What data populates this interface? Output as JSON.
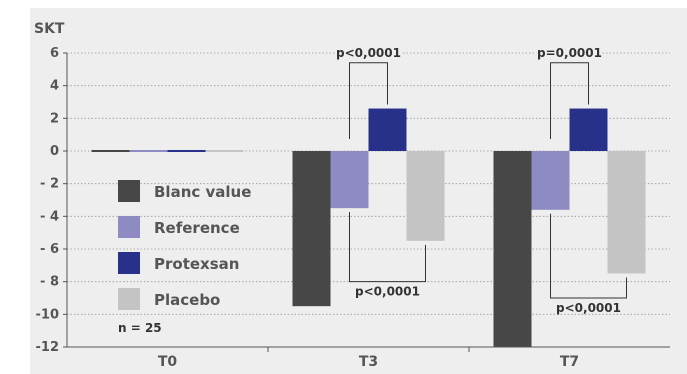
{
  "chart_data": {
    "type": "bar",
    "ylabel": "SKT",
    "ylim": [
      -12,
      6
    ],
    "yticks": [
      {
        "value": 6,
        "label": "6"
      },
      {
        "value": 4,
        "label": "4"
      },
      {
        "value": 2,
        "label": "2"
      },
      {
        "value": 0,
        "label": "0"
      },
      {
        "value": -2,
        "label": "- 2"
      },
      {
        "value": -4,
        "label": "- 4"
      },
      {
        "value": -6,
        "label": "- 6"
      },
      {
        "value": -8,
        "label": "- 8"
      },
      {
        "value": -10,
        "label": "-10"
      },
      {
        "value": -12,
        "label": "-12"
      }
    ],
    "categories": [
      "T0",
      "T3",
      "T7"
    ],
    "series": [
      {
        "name": "Blanc value",
        "color": "#474747",
        "values": [
          0,
          -9.5,
          -12
        ]
      },
      {
        "name": "Reference",
        "color": "#8e8bc3",
        "values": [
          0,
          -3.5,
          -3.6
        ]
      },
      {
        "name": "Protexsan",
        "color": "#28318a",
        "values": [
          0,
          2.6,
          2.6
        ]
      },
      {
        "name": "Placebo",
        "color": "#c4c4c4",
        "values": [
          0,
          -5.5,
          -7.5
        ]
      }
    ],
    "grid": true,
    "gridlines": "dotted",
    "legend_position": "left-inside",
    "note": "n = 25",
    "annotations": [
      {
        "category": 1,
        "text": "p<0,0001",
        "from_series": 1,
        "to_series": 2,
        "side": "top",
        "bracket_y": 5.4
      },
      {
        "category": 1,
        "text": "p<0,0001",
        "from_series": 1,
        "to_series": 3,
        "side": "bottom",
        "bracket_y": -8.0
      },
      {
        "category": 2,
        "text": "p=0,0001",
        "from_series": 1,
        "to_series": 2,
        "side": "top",
        "bracket_y": 5.4
      },
      {
        "category": 2,
        "text": "p<0,0001",
        "from_series": 1,
        "to_series": 3,
        "side": "bottom",
        "bracket_y": -9.0
      }
    ]
  }
}
